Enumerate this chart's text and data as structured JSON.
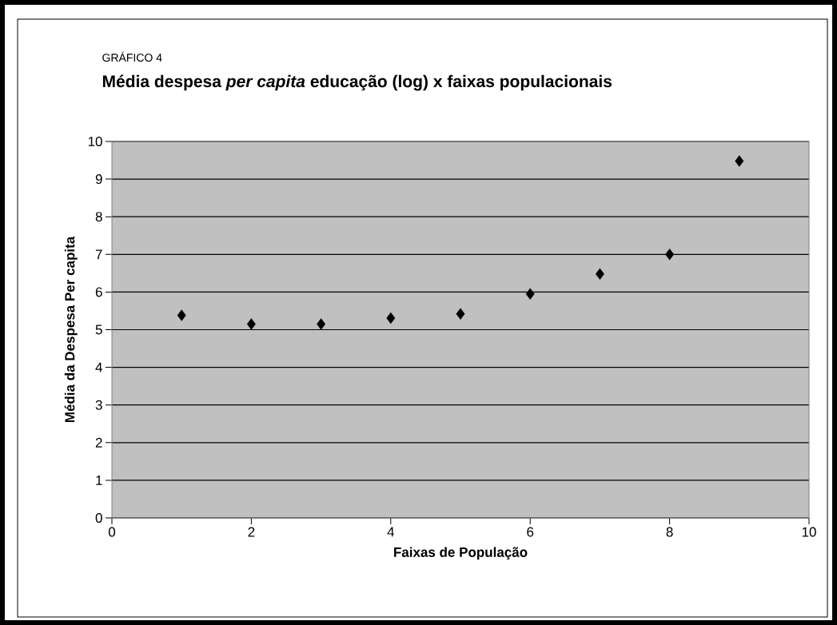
{
  "chart_data": {
    "type": "scatter",
    "subtitle": "GRÁFICO 4",
    "title": "Média despesa *per capita* educação (log) x faixas populacionais",
    "xlabel": "Faixas de População",
    "ylabel": "Média da Despesa Per capita",
    "x": [
      1,
      2,
      3,
      4,
      5,
      6,
      7,
      8,
      9
    ],
    "values": [
      5.38,
      5.15,
      5.15,
      5.31,
      5.42,
      5.95,
      6.48,
      7.0,
      9.48
    ],
    "color": "#000000",
    "marker": "diamond",
    "xlim": [
      0,
      10
    ],
    "xticks": [
      0,
      2,
      4,
      6,
      8,
      10
    ],
    "ylim": [
      0,
      10
    ],
    "yticks": [
      0,
      1,
      2,
      3,
      4,
      5,
      6,
      7,
      8,
      9,
      10
    ],
    "grid": "y"
  }
}
